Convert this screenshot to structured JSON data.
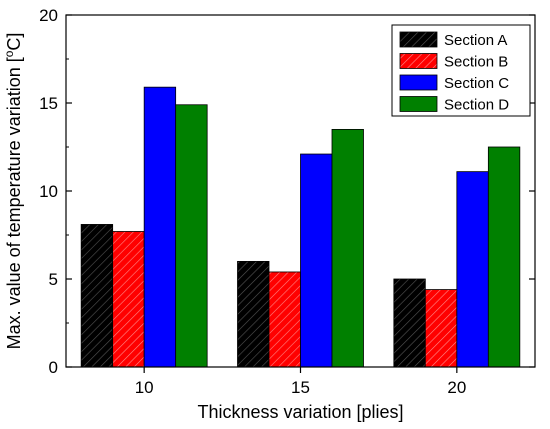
{
  "chart_data": {
    "type": "bar",
    "categories": [
      "10",
      "15",
      "20"
    ],
    "series": [
      {
        "name": "Section A",
        "values": [
          8.1,
          6.0,
          5.0
        ],
        "color": "#000000",
        "hatch": true
      },
      {
        "name": "Section B",
        "values": [
          7.7,
          5.4,
          4.4
        ],
        "color": "#ff0000",
        "hatch": true
      },
      {
        "name": "Section C",
        "values": [
          15.9,
          12.1,
          11.1
        ],
        "color": "#0000ff",
        "hatch": false
      },
      {
        "name": "Section D",
        "values": [
          14.9,
          13.5,
          12.5
        ],
        "color": "#008000",
        "hatch": false
      }
    ],
    "xlabel": "Thickness variation [plies]",
    "ylabel": "Max. value of temperature variation [",
    "ylabel_sup": "o",
    "ylabel_tail": "C]",
    "ylim": [
      0,
      20
    ],
    "yticks": [
      "0",
      "5",
      "10",
      "15",
      "20"
    ],
    "legend_position": "top-right",
    "grid": false
  }
}
